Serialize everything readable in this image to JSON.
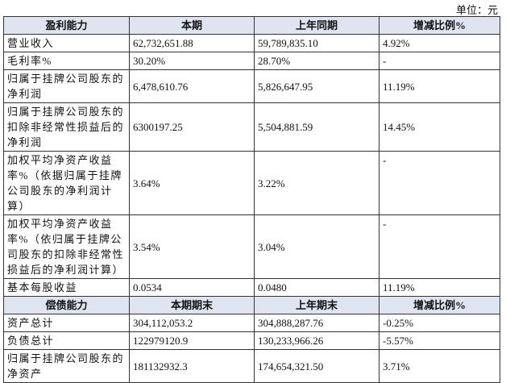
{
  "unit": "单位：元",
  "profit": {
    "header": [
      "盈利能力",
      "本期",
      "上年同期",
      "增减比例%"
    ],
    "rows": [
      [
        "营业收入",
        "62,732,651.88",
        "59,789,835.10",
        "4.92%"
      ],
      [
        "毛利率%",
        "30.20%",
        "28.70%",
        "-"
      ],
      [
        "归属于挂牌公司股东的净利润",
        "6,478,610.76",
        "5,826,647.95",
        "11.19%"
      ],
      [
        "归属于挂牌公司股东的扣除非经常性损益后的净利润",
        "6300197.25",
        "5,504,881.59",
        "14.45%"
      ],
      [
        "加权平均净资产收益率%（依据归属于挂牌公司股东的净利润计算）",
        "3.64%",
        "3.22%",
        "-"
      ],
      [
        "加权平均净资产收益率%（依归属于挂牌公司股东的扣除非经常性损益后的净利润计算）",
        "3.54%",
        "3.04%",
        "-"
      ],
      [
        "基本每股收益",
        "0.0534",
        "0.0480",
        "11.19%"
      ]
    ]
  },
  "solvency": {
    "header": [
      "偿债能力",
      "本期期末",
      "上年期末",
      "增减比例%"
    ],
    "rows": [
      [
        "资产总计",
        "304,112,053.2",
        "304,888,287.76",
        "-0.25%"
      ],
      [
        "负债总计",
        "122979120.9",
        "130,233,966.26",
        "-5.57%"
      ],
      [
        "归属于挂牌公司股东的净资产",
        "181132932.3",
        "174,654,321.50",
        "3.71%"
      ]
    ]
  }
}
